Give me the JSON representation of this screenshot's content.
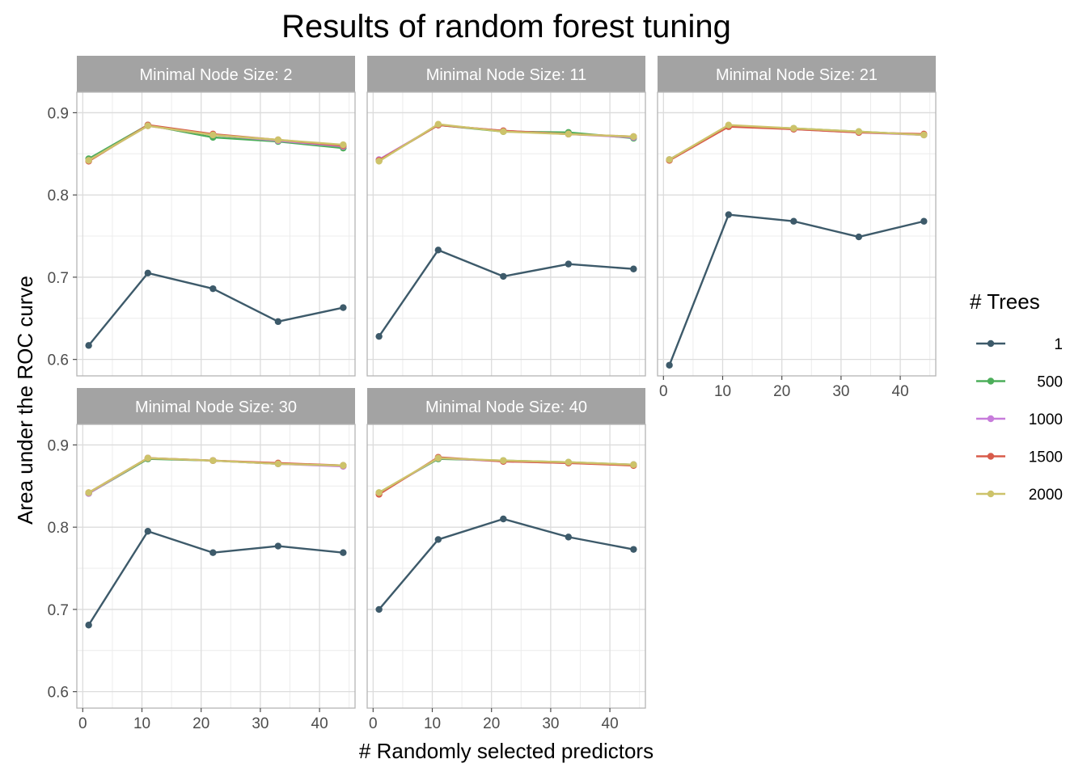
{
  "chart_data": {
    "type": "line",
    "title": "Results of random forest tuning",
    "xlabel": "# Randomly selected predictors",
    "ylabel": "Area under the ROC curve",
    "x": [
      1,
      11,
      22,
      33,
      44
    ],
    "xlim": [
      -1,
      46
    ],
    "ylim": [
      0.58,
      0.925
    ],
    "x_ticks": [
      0,
      10,
      20,
      30,
      40
    ],
    "y_ticks": [
      0.6,
      0.7,
      0.8,
      0.9
    ],
    "grid": true,
    "legend": {
      "title": "# Trees",
      "placement": "right",
      "entries": [
        {
          "label": "1",
          "color": "#3d5a6a"
        },
        {
          "label": "500",
          "color": "#4cae5a"
        },
        {
          "label": "1000",
          "color": "#c77cdb"
        },
        {
          "label": "1500",
          "color": "#d85b4a"
        },
        {
          "label": "2000",
          "color": "#cdc36a"
        }
      ]
    },
    "panels": [
      {
        "strip": "Minimal Node Size: 2",
        "series": [
          {
            "trees": "1",
            "values": [
              0.617,
              0.705,
              0.686,
              0.646,
              0.663
            ]
          },
          {
            "trees": "500",
            "values": [
              0.844,
              0.885,
              0.87,
              0.865,
              0.857
            ]
          },
          {
            "trees": "1000",
            "values": [
              0.842,
              0.884,
              0.873,
              0.866,
              0.859
            ]
          },
          {
            "trees": "1500",
            "values": [
              0.841,
              0.885,
              0.874,
              0.867,
              0.86
            ]
          },
          {
            "trees": "2000",
            "values": [
              0.842,
              0.884,
              0.873,
              0.867,
              0.861
            ]
          }
        ]
      },
      {
        "strip": "Minimal Node Size: 11",
        "series": [
          {
            "trees": "1",
            "values": [
              0.628,
              0.733,
              0.701,
              0.716,
              0.71
            ]
          },
          {
            "trees": "500",
            "values": [
              0.842,
              0.885,
              0.877,
              0.876,
              0.869
            ]
          },
          {
            "trees": "1000",
            "values": [
              0.843,
              0.885,
              0.878,
              0.874,
              0.87
            ]
          },
          {
            "trees": "1500",
            "values": [
              0.842,
              0.885,
              0.878,
              0.874,
              0.871
            ]
          },
          {
            "trees": "2000",
            "values": [
              0.841,
              0.886,
              0.877,
              0.874,
              0.871
            ]
          }
        ]
      },
      {
        "strip": "Minimal Node Size: 21",
        "series": [
          {
            "trees": "1",
            "values": [
              0.593,
              0.776,
              0.768,
              0.749,
              0.768
            ]
          },
          {
            "trees": "500",
            "values": [
              0.843,
              0.884,
              0.881,
              0.877,
              0.873
            ]
          },
          {
            "trees": "1000",
            "values": [
              0.843,
              0.884,
              0.88,
              0.876,
              0.873
            ]
          },
          {
            "trees": "1500",
            "values": [
              0.842,
              0.883,
              0.88,
              0.876,
              0.874
            ]
          },
          {
            "trees": "2000",
            "values": [
              0.843,
              0.885,
              0.881,
              0.877,
              0.873
            ]
          }
        ]
      },
      {
        "strip": "Minimal Node Size: 30",
        "series": [
          {
            "trees": "1",
            "values": [
              0.681,
              0.795,
              0.769,
              0.777,
              0.769
            ]
          },
          {
            "trees": "500",
            "values": [
              0.841,
              0.883,
              0.881,
              0.877,
              0.875
            ]
          },
          {
            "trees": "1000",
            "values": [
              0.841,
              0.884,
              0.881,
              0.877,
              0.874
            ]
          },
          {
            "trees": "1500",
            "values": [
              0.842,
              0.884,
              0.881,
              0.878,
              0.875
            ]
          },
          {
            "trees": "2000",
            "values": [
              0.842,
              0.884,
              0.881,
              0.877,
              0.875
            ]
          }
        ]
      },
      {
        "strip": "Minimal Node Size: 40",
        "series": [
          {
            "trees": "1",
            "values": [
              0.7,
              0.785,
              0.81,
              0.788,
              0.773
            ]
          },
          {
            "trees": "500",
            "values": [
              0.842,
              0.883,
              0.881,
              0.879,
              0.876
            ]
          },
          {
            "trees": "1000",
            "values": [
              0.841,
              0.884,
              0.88,
              0.878,
              0.876
            ]
          },
          {
            "trees": "1500",
            "values": [
              0.84,
              0.885,
              0.88,
              0.878,
              0.875
            ]
          },
          {
            "trees": "2000",
            "values": [
              0.842,
              0.884,
              0.881,
              0.879,
              0.876
            ]
          }
        ]
      }
    ]
  }
}
